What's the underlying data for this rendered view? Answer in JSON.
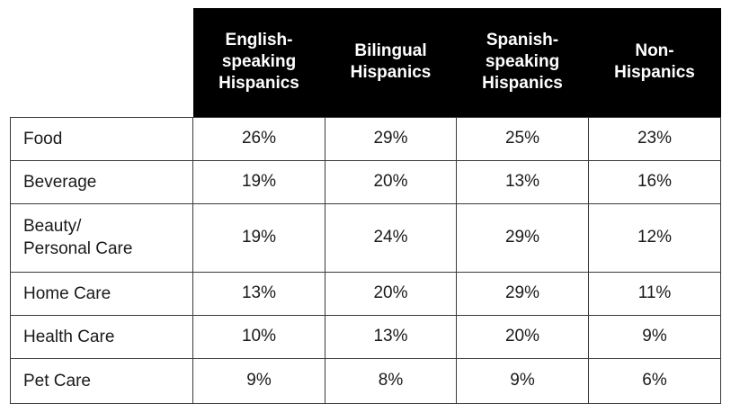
{
  "chart_data": {
    "type": "table",
    "columns": [
      "English-\nspeaking\nHispanics",
      "Bilingual\nHispanics",
      "Spanish-\nspeaking\nHispanics",
      "Non-\nHispanics"
    ],
    "rows": [
      {
        "label": "Food",
        "values": [
          "26%",
          "29%",
          "25%",
          "23%"
        ]
      },
      {
        "label": "Beverage",
        "values": [
          "19%",
          "20%",
          "13%",
          "16%"
        ]
      },
      {
        "label": "Beauty/\nPersonal Care",
        "values": [
          "19%",
          "24%",
          "29%",
          "12%"
        ]
      },
      {
        "label": "Home Care",
        "values": [
          "13%",
          "20%",
          "29%",
          "11%"
        ]
      },
      {
        "label": "Health Care",
        "values": [
          "10%",
          "13%",
          "20%",
          "9%"
        ]
      },
      {
        "label": "Pet Care",
        "values": [
          "9%",
          "8%",
          "9%",
          "6%"
        ]
      }
    ],
    "header_background": "#000000",
    "header_text_color": "#ffffff"
  }
}
